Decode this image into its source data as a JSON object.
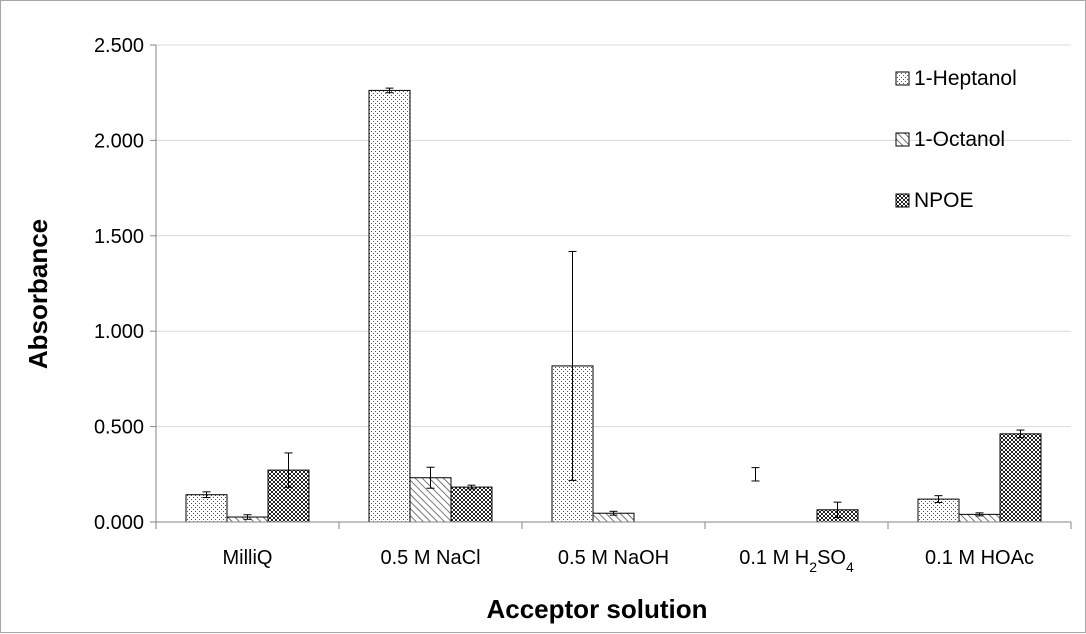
{
  "chart_data": {
    "type": "bar",
    "title": "",
    "xlabel": "Acceptor solution",
    "ylabel": "Absorbance",
    "ylim": [
      0,
      2.5
    ],
    "yticks": [
      "0.000",
      "0.500",
      "1.000",
      "1.500",
      "2.000",
      "2.500"
    ],
    "categories": [
      {
        "text": "MilliQ"
      },
      {
        "text": "0.5 M NaCl"
      },
      {
        "text": "0.5 M NaOH"
      },
      {
        "text": "0.1 M H",
        "sub1": "2",
        "mid": "SO",
        "sub2": "4"
      },
      {
        "text": "0.1 M HOAc"
      }
    ],
    "grid": true,
    "legend_position": "top-right",
    "series": [
      {
        "name": "1-Heptanol",
        "pattern": "dots",
        "values": [
          0.143,
          2.262,
          0.818,
          0.0,
          0.12
        ],
        "errors": [
          0.015,
          0.012,
          0.6,
          0.0,
          0.018
        ]
      },
      {
        "name": "1-Octanol",
        "pattern": "hatch",
        "values": [
          0.026,
          0.232,
          0.046,
          0.0,
          0.04
        ],
        "errors": [
          0.012,
          0.055,
          0.01,
          0.0,
          0.008
        ]
      },
      {
        "name": "NPOE",
        "pattern": "checker",
        "values": [
          0.272,
          0.183,
          0.0,
          0.064,
          0.462
        ],
        "errors": [
          0.09,
          0.01,
          0.0,
          0.04,
          0.02
        ]
      }
    ],
    "extra_errorbars": [
      {
        "category_index": 3,
        "series_index": 0,
        "value": 0.25,
        "error": 0.035
      }
    ]
  }
}
